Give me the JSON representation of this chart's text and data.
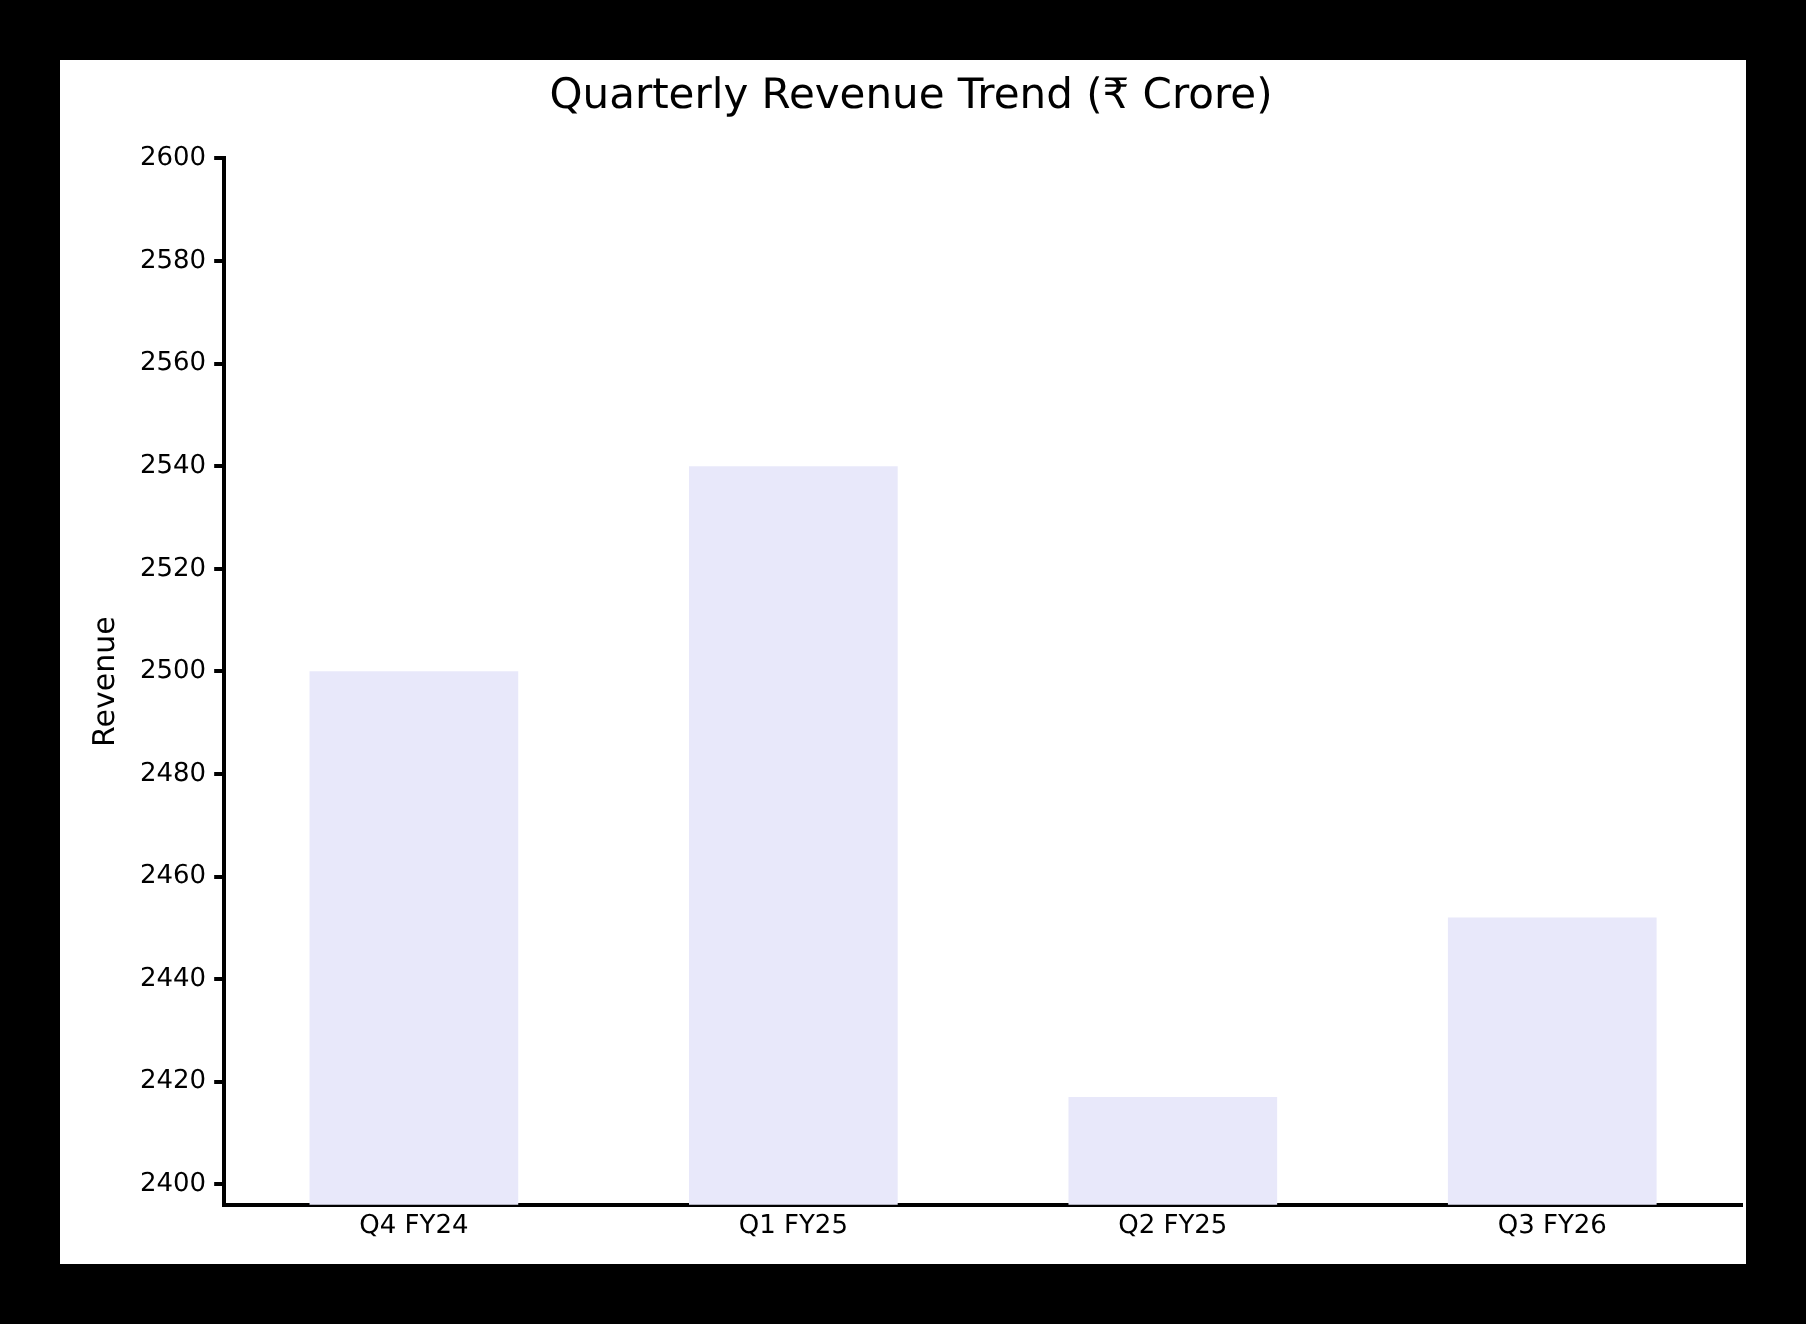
{
  "chart_data": {
    "type": "bar",
    "title": "Quarterly Revenue Trend (₹ Crore)",
    "ylabel": "Revenue",
    "categories": [
      "Q4 FY24",
      "Q1 FY25",
      "Q2 FY25",
      "Q3 FY26"
    ],
    "values": [
      2500,
      2540,
      2417,
      2452
    ],
    "color": "#e8e8fa",
    "ylim": [
      2396,
      2600
    ],
    "yticks": [
      2400,
      2420,
      2440,
      2460,
      2480,
      2500,
      2520,
      2540,
      2560,
      2580,
      2600
    ],
    "grid": false,
    "legend": false
  }
}
